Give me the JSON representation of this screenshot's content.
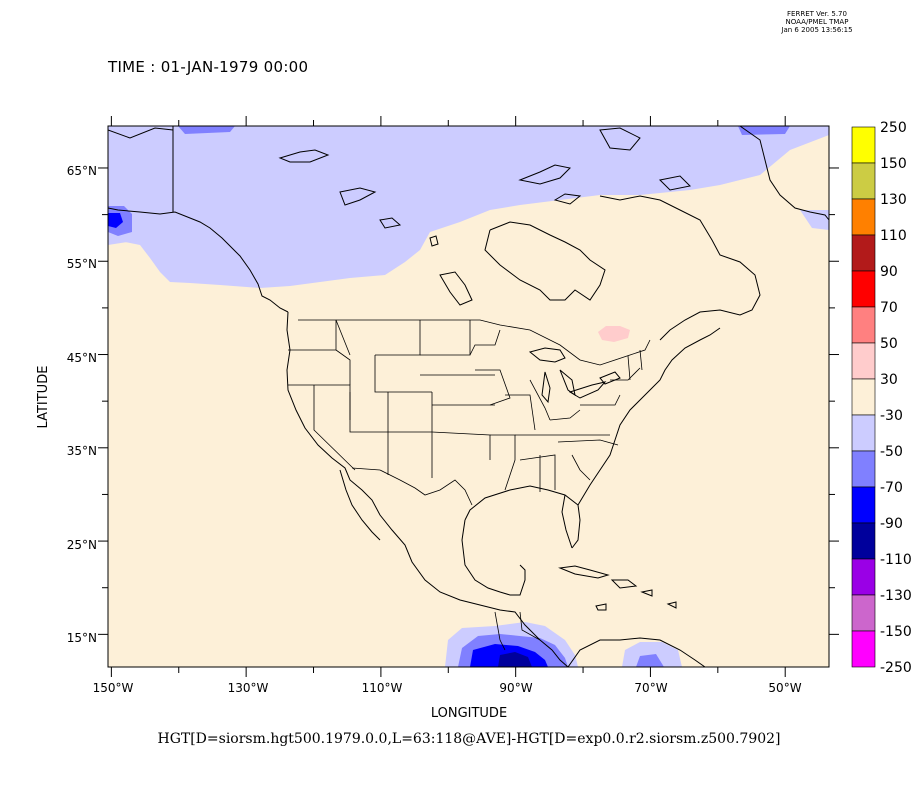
{
  "header": {
    "ferret_version": "FERRET Ver. 5.70",
    "org": "NOAA/PMEL TMAP",
    "date": "Jan  6 2005 13:56:15",
    "time_label": "TIME : 01-JAN-1979 00:00"
  },
  "map": {
    "xlabel": "LONGITUDE",
    "ylabel": "LATITUDE",
    "variable_label": "HGT[D=siorsm.hgt500.1979.0.0,L=63:118@AVE]-HGT[D=exp0.0.r2.siorsm.z500.7902]",
    "lon_range": [
      -150.5,
      -43.5
    ],
    "lat_range": [
      11.5,
      69.5
    ],
    "lon_ticks": [
      "150°W",
      "130°W",
      "110°W",
      "90°W",
      "70°W",
      "50°W"
    ],
    "lat_ticks": [
      "15°N",
      "25°N",
      "35°N",
      "45°N",
      "55°N",
      "65°N"
    ],
    "background_color": "#fdf0d8"
  },
  "colorbar": {
    "levels": [
      "250",
      "150",
      "130",
      "110",
      "90",
      "70",
      "50",
      "30",
      "-30",
      "-50",
      "-70",
      "-90",
      "-110",
      "-130",
      "-150",
      "-250"
    ],
    "colors": [
      "#ffff00",
      "#cccc44",
      "#ff8000",
      "#b21a1a",
      "#ff0000",
      "#ff8080",
      "#ffcccc",
      "#fdf0d8",
      "#ccccff",
      "#8080ff",
      "#0000ff",
      "#00009c",
      "#9a00e6",
      "#cc66cc",
      "#ff00ff"
    ]
  }
}
